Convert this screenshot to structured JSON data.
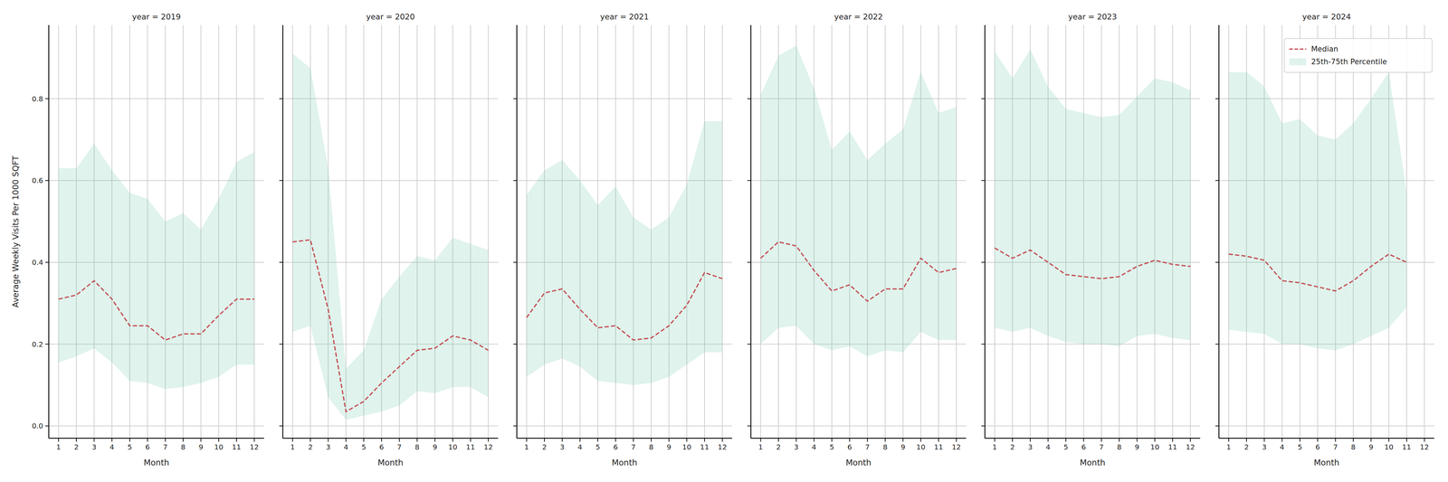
{
  "chart_data": [
    {
      "type": "line",
      "title": "year = 2019",
      "xlabel": "Month",
      "ylabel": "Average Weekly Visits Per 1000 SQFT",
      "x": [
        1,
        2,
        3,
        4,
        5,
        6,
        7,
        8,
        9,
        10,
        11,
        12
      ],
      "xlim": [
        0.45,
        12.55
      ],
      "xticks": [
        1,
        2,
        3,
        4,
        5,
        6,
        7,
        8,
        9,
        10,
        11,
        12
      ],
      "ylim": [
        -0.03,
        0.98
      ],
      "yticks": [
        {
          "value": 0,
          "label": "0.0"
        },
        {
          "value": 0.2,
          "label": "0.2"
        },
        {
          "value": 0.4,
          "label": "0.4"
        },
        {
          "value": 0.6,
          "label": "0.6"
        },
        {
          "value": 0.8,
          "label": "0.8"
        }
      ],
      "grid": true,
      "series": [
        {
          "type": "line",
          "color": "#c44e52",
          "line_style": "dashed",
          "values": [
            0.31,
            0.32,
            0.355,
            0.31,
            0.245,
            0.245,
            0.21,
            0.225,
            0.225,
            0.27,
            0.31,
            0.31
          ]
        },
        {
          "type": "area",
          "color": "#66c2a5",
          "low": [
            0.155,
            0.17,
            0.19,
            0.155,
            0.11,
            0.105,
            0.09,
            0.095,
            0.105,
            0.12,
            0.15,
            0.15
          ],
          "high": [
            0.63,
            0.63,
            0.69,
            0.625,
            0.57,
            0.555,
            0.5,
            0.52,
            0.48,
            0.555,
            0.645,
            0.67
          ]
        }
      ]
    },
    {
      "type": "line",
      "title": "year = 2020",
      "xlabel": "Month",
      "x": [
        1,
        2,
        3,
        4,
        5,
        6,
        7,
        8,
        9,
        10,
        11,
        12
      ],
      "xlim": [
        0.45,
        12.55
      ],
      "xticks": [
        1,
        2,
        3,
        4,
        5,
        6,
        7,
        8,
        9,
        10,
        11,
        12
      ],
      "ylim": [
        -0.03,
        0.98
      ],
      "yticks": [
        0,
        0.2,
        0.4,
        0.6,
        0.8
      ],
      "grid": true,
      "tick_labels": "x",
      "series": [
        {
          "type": "line",
          "color": "#c44e52",
          "line_style": "dashed",
          "values": [
            0.45,
            0.455,
            0.285,
            0.035,
            0.06,
            0.105,
            0.145,
            0.185,
            0.19,
            0.22,
            0.21,
            0.185
          ]
        },
        {
          "type": "area",
          "color": "#66c2a5",
          "low": [
            0.23,
            0.245,
            0.07,
            0.015,
            0.025,
            0.035,
            0.05,
            0.085,
            0.08,
            0.095,
            0.095,
            0.07
          ],
          "high": [
            0.91,
            0.875,
            0.63,
            0.14,
            0.185,
            0.31,
            0.365,
            0.415,
            0.405,
            0.46,
            0.445,
            0.43
          ]
        }
      ]
    },
    {
      "type": "line",
      "title": "year = 2021",
      "xlabel": "Month",
      "x": [
        1,
        2,
        3,
        4,
        5,
        6,
        7,
        8,
        9,
        10,
        11,
        12
      ],
      "xlim": [
        0.45,
        12.55
      ],
      "xticks": [
        1,
        2,
        3,
        4,
        5,
        6,
        7,
        8,
        9,
        10,
        11,
        12
      ],
      "ylim": [
        -0.03,
        0.98
      ],
      "yticks": [
        0,
        0.2,
        0.4,
        0.6,
        0.8
      ],
      "grid": true,
      "tick_labels": "x",
      "series": [
        {
          "type": "line",
          "color": "#c44e52",
          "line_style": "dashed",
          "values": [
            0.265,
            0.325,
            0.335,
            0.285,
            0.24,
            0.245,
            0.21,
            0.215,
            0.245,
            0.295,
            0.375,
            0.36
          ]
        },
        {
          "type": "area",
          "color": "#66c2a5",
          "low": [
            0.12,
            0.15,
            0.165,
            0.145,
            0.11,
            0.105,
            0.1,
            0.105,
            0.12,
            0.15,
            0.18,
            0.18
          ],
          "high": [
            0.565,
            0.625,
            0.65,
            0.6,
            0.54,
            0.585,
            0.51,
            0.48,
            0.51,
            0.59,
            0.745,
            0.745
          ]
        }
      ]
    },
    {
      "type": "line",
      "title": "year = 2022",
      "xlabel": "Month",
      "x": [
        1,
        2,
        3,
        4,
        5,
        6,
        7,
        8,
        9,
        10,
        11,
        12
      ],
      "xlim": [
        0.45,
        12.55
      ],
      "xticks": [
        1,
        2,
        3,
        4,
        5,
        6,
        7,
        8,
        9,
        10,
        11,
        12
      ],
      "ylim": [
        -0.03,
        0.98
      ],
      "yticks": [
        0,
        0.2,
        0.4,
        0.6,
        0.8
      ],
      "grid": true,
      "tick_labels": "x",
      "series": [
        {
          "type": "line",
          "color": "#c44e52",
          "line_style": "dashed",
          "values": [
            0.41,
            0.45,
            0.44,
            0.38,
            0.33,
            0.345,
            0.305,
            0.335,
            0.335,
            0.41,
            0.375,
            0.385
          ]
        },
        {
          "type": "area",
          "color": "#66c2a5",
          "low": [
            0.2,
            0.24,
            0.245,
            0.2,
            0.185,
            0.195,
            0.17,
            0.185,
            0.18,
            0.23,
            0.21,
            0.21
          ],
          "high": [
            0.81,
            0.905,
            0.93,
            0.825,
            0.675,
            0.72,
            0.65,
            0.69,
            0.725,
            0.865,
            0.765,
            0.78
          ]
        }
      ]
    },
    {
      "type": "line",
      "title": "year = 2023",
      "xlabel": "Month",
      "x": [
        1,
        2,
        3,
        4,
        5,
        6,
        7,
        8,
        9,
        10,
        11,
        12
      ],
      "xlim": [
        0.45,
        12.55
      ],
      "xticks": [
        1,
        2,
        3,
        4,
        5,
        6,
        7,
        8,
        9,
        10,
        11,
        12
      ],
      "ylim": [
        -0.03,
        0.98
      ],
      "yticks": [
        0,
        0.2,
        0.4,
        0.6,
        0.8
      ],
      "grid": true,
      "tick_labels": "x",
      "series": [
        {
          "type": "line",
          "color": "#c44e52",
          "line_style": "dashed",
          "values": [
            0.435,
            0.41,
            0.43,
            0.4,
            0.37,
            0.365,
            0.36,
            0.365,
            0.39,
            0.405,
            0.395,
            0.39
          ]
        },
        {
          "type": "area",
          "color": "#66c2a5",
          "low": [
            0.24,
            0.23,
            0.24,
            0.22,
            0.205,
            0.2,
            0.2,
            0.195,
            0.22,
            0.225,
            0.215,
            0.21
          ],
          "high": [
            0.915,
            0.85,
            0.92,
            0.83,
            0.775,
            0.765,
            0.755,
            0.76,
            0.805,
            0.85,
            0.84,
            0.82
          ]
        }
      ]
    },
    {
      "type": "line",
      "title": "year = 2024",
      "xlabel": "Month",
      "x": [
        1,
        2,
        3,
        4,
        5,
        6,
        7,
        8,
        9,
        10,
        11
      ],
      "xlim": [
        0.45,
        12.55
      ],
      "xticks": [
        1,
        2,
        3,
        4,
        5,
        6,
        7,
        8,
        9,
        10,
        11,
        12
      ],
      "ylim": [
        -0.03,
        0.98
      ],
      "yticks": [
        0,
        0.2,
        0.4,
        0.6,
        0.8
      ],
      "grid": true,
      "tick_labels": "x",
      "legend": "upper right",
      "series": [
        {
          "name": "Median",
          "type": "line",
          "color": "#c44e52",
          "line_style": "dashed",
          "values": [
            0.42,
            0.415,
            0.405,
            0.355,
            0.35,
            0.34,
            0.33,
            0.355,
            0.39,
            0.42,
            0.4
          ]
        },
        {
          "name": "25th-75th Percentile",
          "type": "area",
          "color": "#66c2a5",
          "low": [
            0.235,
            0.23,
            0.225,
            0.2,
            0.2,
            0.19,
            0.185,
            0.2,
            0.22,
            0.24,
            0.29
          ],
          "high": [
            0.865,
            0.865,
            0.83,
            0.74,
            0.75,
            0.71,
            0.7,
            0.74,
            0.8,
            0.865,
            0.57
          ]
        }
      ]
    }
  ]
}
